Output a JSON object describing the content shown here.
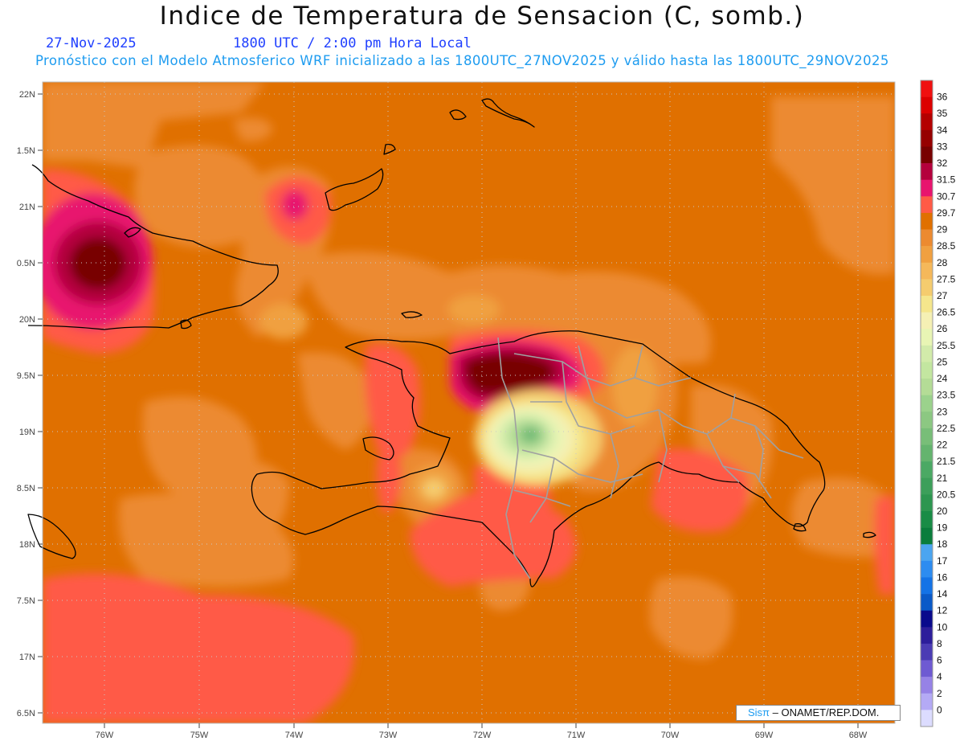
{
  "header": {
    "title": "Indice de Temperatura de Sensacion (C, somb.)",
    "date": "27-Nov-2025",
    "time": "1800 UTC / 2:00 pm Hora Local",
    "subtitle": "Pronóstico con el Modelo Atmosferico WRF inicializado a las 1800UTC_27NOV2025 y válido hasta las  1800UTC_29NOV2025"
  },
  "axes": {
    "lat_labels": [
      "22N",
      "1.5N",
      "21N",
      "0.5N",
      "20N",
      "9.5N",
      "19N",
      "8.5N",
      "18N",
      "7.5N",
      "17N",
      "6.5N"
    ],
    "lon_labels": [
      "76W",
      "75W",
      "74W",
      "73W",
      "72W",
      "71W",
      "70W",
      "69W",
      "68W"
    ]
  },
  "colorbar": {
    "levels": [
      "36",
      "35",
      "34",
      "33",
      "32",
      "31.5",
      "30.7",
      "29.7",
      "29",
      "28.5",
      "28",
      "27.5",
      "27",
      "26.5",
      "26",
      "25.5",
      "25",
      "24",
      "23.5",
      "23",
      "22.5",
      "22",
      "21.5",
      "21",
      "20.5",
      "20",
      "19",
      "18",
      "17",
      "16",
      "14",
      "12",
      "10",
      "8",
      "6",
      "4",
      "2",
      "0"
    ],
    "colors": [
      "#f01010",
      "#dc0000",
      "#b40000",
      "#960000",
      "#780000",
      "#b4003c",
      "#e8146e",
      "#ff5a46",
      "#e07000",
      "#ec8a30",
      "#f0a040",
      "#f5b85a",
      "#f5cc6e",
      "#f5e68c",
      "#f5f0b4",
      "#e8f5b4",
      "#d2ebaa",
      "#c3e6a0",
      "#b4dc96",
      "#9bd28c",
      "#8cc882",
      "#78be78",
      "#64b46e",
      "#4ba964",
      "#3c9f5a",
      "#2d9650",
      "#198c46",
      "#0a7d3c",
      "#4ba5f0",
      "#2d8cf0",
      "#1473e6",
      "#0a5ac8",
      "#0a0a8c",
      "#2d1e9b",
      "#4b3cb4",
      "#6e5ad2",
      "#9682e6",
      "#b4aaf5",
      "#dcdcff"
    ]
  },
  "credit": {
    "sis": "Sisπ",
    "text": "– ONAMET/REP.DOM."
  }
}
